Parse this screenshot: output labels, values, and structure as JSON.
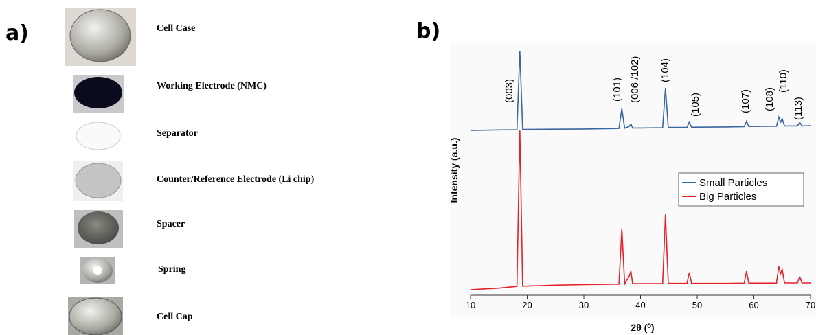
{
  "panel_a": {
    "label": "a)",
    "items": [
      "Cell Case",
      "Working Electrode (NMC)",
      "Separator",
      "Counter/Reference Electrode (Li chip)",
      "Spacer",
      "Spring",
      "Cell Cap"
    ]
  },
  "chart_data": {
    "type": "line",
    "panel_label": "b)",
    "xlabel": "2θ (⁰)",
    "ylabel": "Intensity (a.u.)",
    "x": [
      10,
      15,
      18.2,
      18.7,
      19.2,
      25,
      30,
      36.2,
      36.7,
      37.2,
      38.0,
      38.3,
      38.6,
      40,
      43.9,
      44.4,
      44.9,
      48.2,
      48.6,
      49.0,
      55,
      58.3,
      58.7,
      59.1,
      64.0,
      64.4,
      64.7,
      65.0,
      65.4,
      67.7,
      68.1,
      68.5,
      70
    ],
    "series": [
      {
        "name": "Small Particles",
        "color": "#3a66a0",
        "values": [
          65.2,
          65.4,
          65.5,
          96.7,
          65.6,
          65.7,
          65.8,
          66.0,
          73.9,
          66.1,
          66.8,
          67.8,
          66.2,
          66.2,
          66.3,
          82.0,
          66.4,
          66.4,
          68.6,
          66.5,
          66.6,
          66.7,
          68.8,
          66.8,
          66.9,
          70.5,
          68.5,
          69.8,
          67.0,
          67.0,
          68.4,
          67.0,
          67.1
        ]
      },
      {
        "name": "Big Particles",
        "color": "#e8202a",
        "values": [
          2.2,
          2.8,
          3.5,
          65.2,
          3.6,
          4.0,
          4.2,
          4.4,
          26.4,
          4.5,
          7.5,
          9.5,
          4.6,
          4.6,
          4.6,
          32.0,
          4.7,
          4.7,
          9.0,
          4.7,
          4.7,
          4.8,
          9.5,
          4.8,
          4.8,
          11.4,
          8.5,
          10.2,
          4.9,
          4.9,
          7.3,
          4.9,
          4.9
        ]
      }
    ],
    "xlim": [
      10,
      70
    ],
    "xticks": [
      10,
      20,
      30,
      40,
      50,
      60,
      70
    ],
    "ylim": [
      0,
      100
    ],
    "annotations": [
      "(003)",
      "(101)",
      "(006 /102)",
      "(104)",
      "(105)",
      "(107)",
      "(108)",
      "(110)",
      "(113)"
    ],
    "legend": "right"
  }
}
